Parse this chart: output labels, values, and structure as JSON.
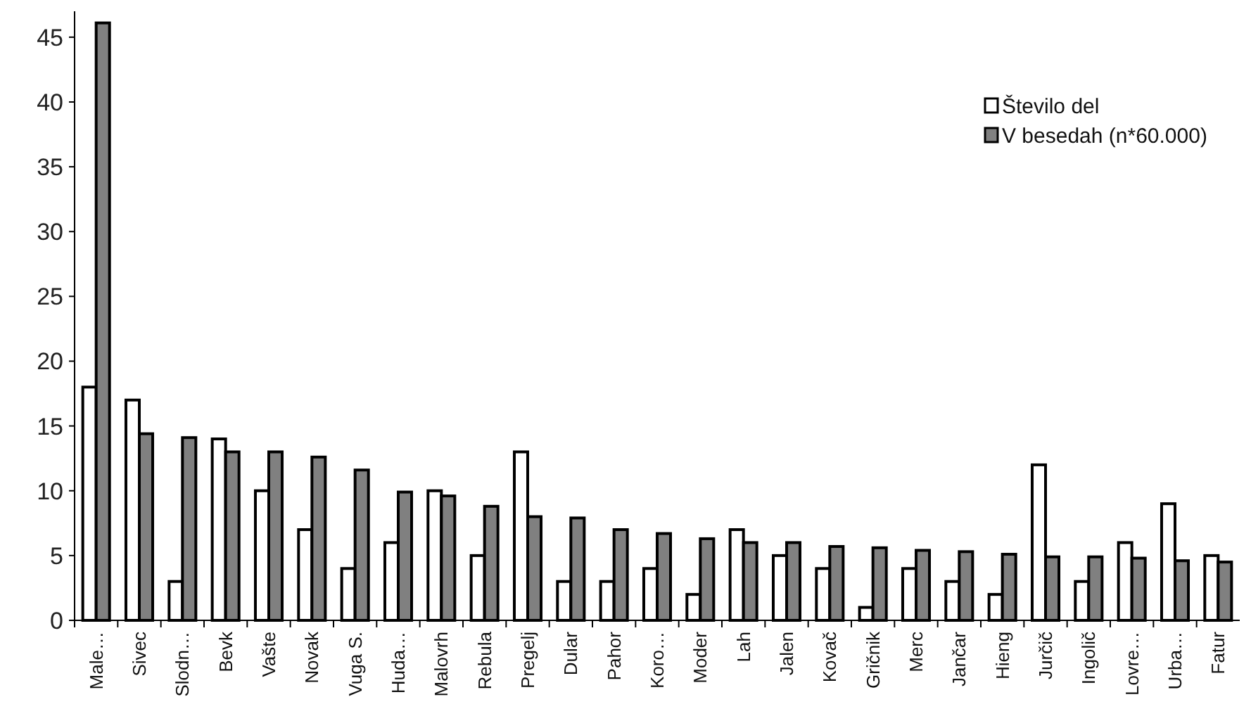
{
  "chart_data": {
    "type": "bar",
    "categories": [
      "Male…",
      "Sivec",
      "Slodn…",
      "Bevk",
      "Vašte",
      "Novak",
      "Vuga S.",
      "Huda…",
      "Malovrh",
      "Rebula",
      "Pregelj",
      "Dular",
      "Pahor",
      "Koro…",
      "Moder",
      "Lah",
      "Jalen",
      "Kovač",
      "Gričnik",
      "Merc",
      "Jančar",
      "Hieng",
      "Jurčič",
      "Ingolič",
      "Lovre…",
      "Urba…",
      "Fatur"
    ],
    "series": [
      {
        "name": "Število del",
        "color": "#ffffff",
        "values": [
          18,
          17,
          3,
          14,
          10,
          7,
          4,
          6,
          10,
          5,
          13,
          3,
          3,
          4,
          2,
          7,
          5,
          4,
          1,
          4,
          3,
          2,
          12,
          3,
          6,
          9,
          5
        ]
      },
      {
        "name": "V besedah (n*60.000)",
        "color": "#808080",
        "values": [
          46.1,
          14.4,
          14.1,
          13,
          13,
          12.6,
          11.6,
          9.9,
          9.6,
          8.8,
          8,
          7.9,
          7,
          6.7,
          6.3,
          6,
          6,
          5.7,
          5.6,
          5.4,
          5.3,
          5.1,
          4.9,
          4.9,
          4.8,
          4.6,
          4.5
        ]
      }
    ],
    "ylim": [
      0,
      47
    ],
    "yticks": [
      0,
      5,
      10,
      15,
      20,
      25,
      30,
      35,
      40,
      45
    ],
    "grid": false,
    "legend": "top right"
  }
}
